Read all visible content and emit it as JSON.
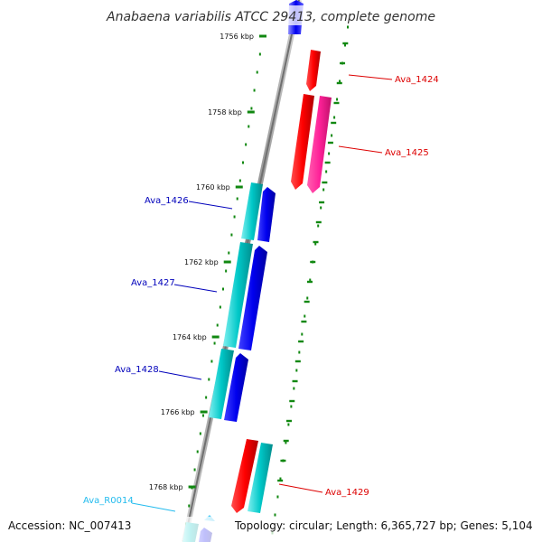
{
  "title": "Anabaena variabilis ATCC 29413, complete genome",
  "footer": {
    "accession": "Accession: NC_007413",
    "topology": "Topology: circular; Length: 6,365,727 bp; Genes: 5,104"
  },
  "ticks": [
    {
      "label": "1756 kbp"
    },
    {
      "label": "1758 kbp"
    },
    {
      "label": "1760 kbp"
    },
    {
      "label": "1762 kbp"
    },
    {
      "label": "1764 kbp"
    },
    {
      "label": "1766 kbp"
    },
    {
      "label": "1768 kbp"
    }
  ],
  "genes": [
    {
      "label": "Ava_1424",
      "color": "#dd0000"
    },
    {
      "label": "Ava_1425",
      "color": "#dd0000"
    },
    {
      "label": "Ava_1426",
      "color": "#0000bb"
    },
    {
      "label": "Ava_1427",
      "color": "#0000bb"
    },
    {
      "label": "Ava_1428",
      "color": "#0000bb"
    },
    {
      "label": "Ava_1429",
      "color": "#dd0000"
    },
    {
      "label": "Ava_R0014",
      "color": "#22bbee"
    }
  ],
  "colors": {
    "forward_strand": "#ff0000",
    "forward_alt": "#ff2299",
    "reverse_strand": "#0000ee",
    "reverse_alt": "#00c8c8",
    "rna": "#22bbee",
    "backbone": "#808080",
    "tick_mark": "#118811"
  }
}
